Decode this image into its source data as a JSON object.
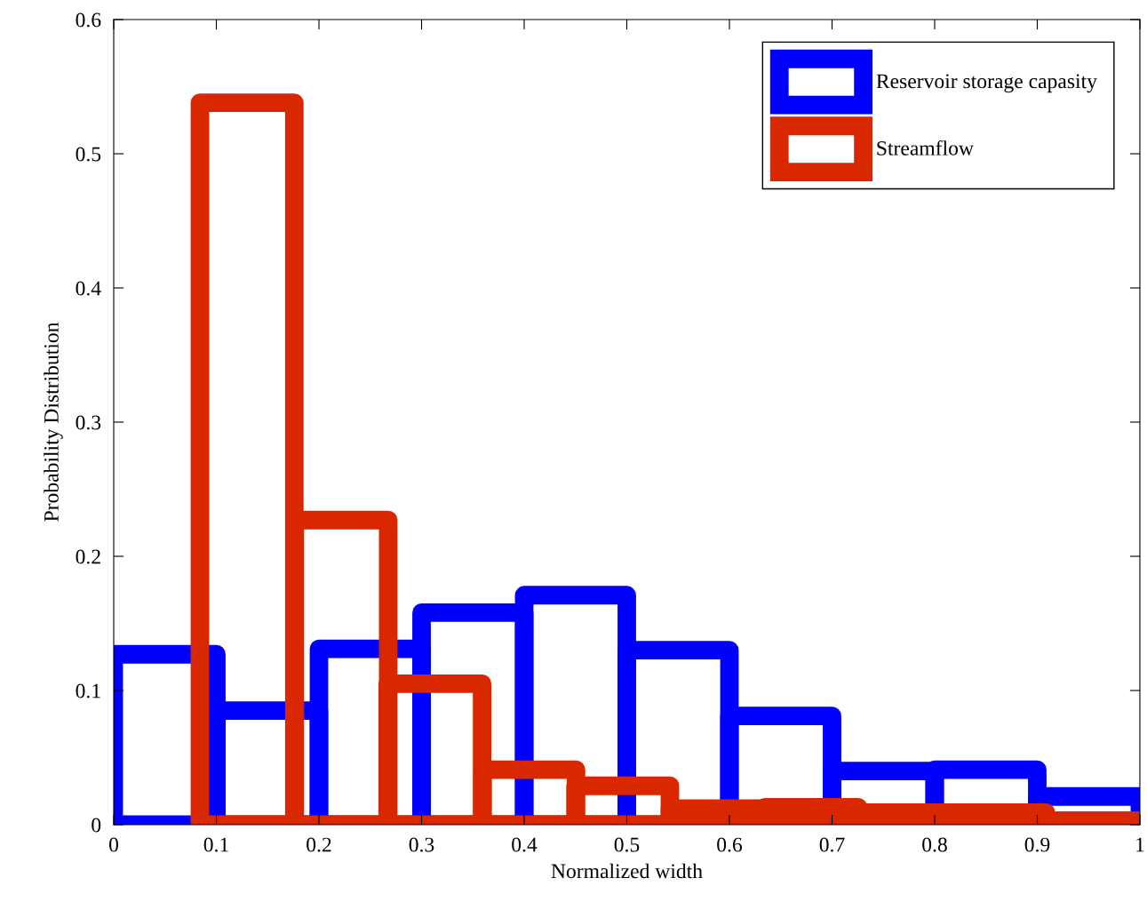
{
  "chart_data": {
    "type": "bar",
    "xlabel": "Normalized width",
    "ylabel": "Probability Distribution",
    "series": [
      {
        "name": "Reservoir storage capasity",
        "color": "#0000ff",
        "x": [
          0.05,
          0.15,
          0.25,
          0.35,
          0.45,
          0.55,
          0.65,
          0.75,
          0.85,
          0.95
        ],
        "values": [
          0.127,
          0.085,
          0.131,
          0.158,
          0.171,
          0.13,
          0.081,
          0.04,
          0.041,
          0.021
        ]
      },
      {
        "name": "Streamflow",
        "color": "#d92800",
        "x": [
          0.13,
          0.222,
          0.313,
          0.405,
          0.496,
          0.588,
          0.68,
          0.771,
          0.863,
          0.954
        ],
        "values": [
          0.538,
          0.227,
          0.105,
          0.041,
          0.029,
          0.012,
          0.013,
          0.009,
          0.009,
          0.003
        ]
      }
    ],
    "xlim": [
      0,
      1
    ],
    "ylim": [
      0,
      0.6
    ],
    "xticks": [
      0,
      0.1,
      0.2,
      0.3,
      0.4,
      0.5,
      0.6,
      0.7,
      0.8,
      0.9,
      1
    ],
    "yticks": [
      0,
      0.1,
      0.2,
      0.3,
      0.4,
      0.5,
      0.6
    ],
    "legend": "top right",
    "grid": false
  }
}
